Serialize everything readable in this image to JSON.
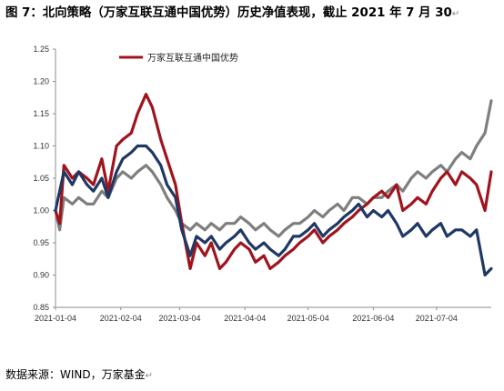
{
  "figure": {
    "title": "图 7：北向策略（万家互联互通中国优势）历史净值表现，截止 2021 年 7 月 30",
    "source": "数据来源：WIND，万家基金"
  },
  "chart_data": {
    "type": "line",
    "ylim": [
      0.85,
      1.25
    ],
    "yticks": [
      "1.25",
      "1.20",
      "1.15",
      "1.10",
      "1.05",
      "1.00",
      "0.95",
      "0.90",
      "0.85"
    ],
    "xticks": [
      "2021-01-04",
      "2021-02-04",
      "2021-03-04",
      "2021-04-04",
      "2021-05-04",
      "2021-06-04",
      "2021-07-04"
    ],
    "x_range": [
      "2021-01-04",
      "2021-07-30"
    ],
    "legend_position": "top-left",
    "grid": false,
    "series": [
      {
        "name": "",
        "color": "#7f7f7f",
        "points": [
          [
            "2021-01-04",
            1.0
          ],
          [
            "2021-01-06",
            0.97
          ],
          [
            "2021-01-08",
            1.02
          ],
          [
            "2021-01-12",
            1.01
          ],
          [
            "2021-01-15",
            1.02
          ],
          [
            "2021-01-19",
            1.01
          ],
          [
            "2021-01-22",
            1.01
          ],
          [
            "2021-01-26",
            1.03
          ],
          [
            "2021-01-29",
            1.02
          ],
          [
            "2021-02-02",
            1.05
          ],
          [
            "2021-02-05",
            1.06
          ],
          [
            "2021-02-09",
            1.05
          ],
          [
            "2021-02-12",
            1.06
          ],
          [
            "2021-02-16",
            1.07
          ],
          [
            "2021-02-19",
            1.06
          ],
          [
            "2021-02-23",
            1.04
          ],
          [
            "2021-02-26",
            1.02
          ],
          [
            "2021-03-02",
            1.0
          ],
          [
            "2021-03-05",
            0.98
          ],
          [
            "2021-03-09",
            0.97
          ],
          [
            "2021-03-12",
            0.98
          ],
          [
            "2021-03-16",
            0.97
          ],
          [
            "2021-03-19",
            0.98
          ],
          [
            "2021-03-23",
            0.97
          ],
          [
            "2021-03-26",
            0.98
          ],
          [
            "2021-03-30",
            0.98
          ],
          [
            "2021-04-02",
            0.99
          ],
          [
            "2021-04-06",
            0.98
          ],
          [
            "2021-04-09",
            0.97
          ],
          [
            "2021-04-13",
            0.98
          ],
          [
            "2021-04-16",
            0.97
          ],
          [
            "2021-04-20",
            0.96
          ],
          [
            "2021-04-23",
            0.97
          ],
          [
            "2021-04-27",
            0.98
          ],
          [
            "2021-04-30",
            0.98
          ],
          [
            "2021-05-04",
            0.99
          ],
          [
            "2021-05-07",
            1.0
          ],
          [
            "2021-05-11",
            0.99
          ],
          [
            "2021-05-14",
            1.0
          ],
          [
            "2021-05-18",
            1.01
          ],
          [
            "2021-05-21",
            1.0
          ],
          [
            "2021-05-25",
            1.02
          ],
          [
            "2021-05-28",
            1.02
          ],
          [
            "2021-06-01",
            1.01
          ],
          [
            "2021-06-04",
            1.02
          ],
          [
            "2021-06-08",
            1.02
          ],
          [
            "2021-06-11",
            1.03
          ],
          [
            "2021-06-15",
            1.04
          ],
          [
            "2021-06-18",
            1.03
          ],
          [
            "2021-06-22",
            1.05
          ],
          [
            "2021-06-25",
            1.06
          ],
          [
            "2021-06-29",
            1.05
          ],
          [
            "2021-07-02",
            1.06
          ],
          [
            "2021-07-06",
            1.07
          ],
          [
            "2021-07-09",
            1.06
          ],
          [
            "2021-07-13",
            1.08
          ],
          [
            "2021-07-16",
            1.09
          ],
          [
            "2021-07-20",
            1.08
          ],
          [
            "2021-07-23",
            1.1
          ],
          [
            "2021-07-27",
            1.12
          ],
          [
            "2021-07-30",
            1.17
          ]
        ]
      },
      {
        "name": "万家互联互通中国优势",
        "color": "#a0141e",
        "points": [
          [
            "2021-01-04",
            1.0
          ],
          [
            "2021-01-06",
            0.98
          ],
          [
            "2021-01-08",
            1.07
          ],
          [
            "2021-01-12",
            1.05
          ],
          [
            "2021-01-15",
            1.06
          ],
          [
            "2021-01-19",
            1.05
          ],
          [
            "2021-01-22",
            1.04
          ],
          [
            "2021-01-26",
            1.08
          ],
          [
            "2021-01-29",
            1.03
          ],
          [
            "2021-02-02",
            1.1
          ],
          [
            "2021-02-05",
            1.11
          ],
          [
            "2021-02-09",
            1.12
          ],
          [
            "2021-02-12",
            1.15
          ],
          [
            "2021-02-16",
            1.18
          ],
          [
            "2021-02-19",
            1.16
          ],
          [
            "2021-02-23",
            1.11
          ],
          [
            "2021-02-26",
            1.08
          ],
          [
            "2021-03-02",
            1.04
          ],
          [
            "2021-03-05",
            0.98
          ],
          [
            "2021-03-09",
            0.91
          ],
          [
            "2021-03-12",
            0.95
          ],
          [
            "2021-03-16",
            0.93
          ],
          [
            "2021-03-19",
            0.95
          ],
          [
            "2021-03-23",
            0.91
          ],
          [
            "2021-03-26",
            0.92
          ],
          [
            "2021-03-30",
            0.94
          ],
          [
            "2021-04-02",
            0.95
          ],
          [
            "2021-04-06",
            0.94
          ],
          [
            "2021-04-09",
            0.92
          ],
          [
            "2021-04-13",
            0.93
          ],
          [
            "2021-04-16",
            0.91
          ],
          [
            "2021-04-20",
            0.92
          ],
          [
            "2021-04-23",
            0.93
          ],
          [
            "2021-04-27",
            0.94
          ],
          [
            "2021-04-30",
            0.95
          ],
          [
            "2021-05-04",
            0.96
          ],
          [
            "2021-05-07",
            0.97
          ],
          [
            "2021-05-11",
            0.95
          ],
          [
            "2021-05-14",
            0.96
          ],
          [
            "2021-05-18",
            0.97
          ],
          [
            "2021-05-21",
            0.98
          ],
          [
            "2021-05-25",
            0.99
          ],
          [
            "2021-05-28",
            1.0
          ],
          [
            "2021-06-01",
            1.01
          ],
          [
            "2021-06-04",
            1.02
          ],
          [
            "2021-06-08",
            1.03
          ],
          [
            "2021-06-11",
            1.02
          ],
          [
            "2021-06-15",
            1.04
          ],
          [
            "2021-06-18",
            1.0
          ],
          [
            "2021-06-22",
            1.01
          ],
          [
            "2021-06-25",
            1.02
          ],
          [
            "2021-06-29",
            1.01
          ],
          [
            "2021-07-02",
            1.03
          ],
          [
            "2021-07-06",
            1.05
          ],
          [
            "2021-07-09",
            1.06
          ],
          [
            "2021-07-13",
            1.04
          ],
          [
            "2021-07-16",
            1.06
          ],
          [
            "2021-07-20",
            1.05
          ],
          [
            "2021-07-23",
            1.04
          ],
          [
            "2021-07-27",
            1.0
          ],
          [
            "2021-07-30",
            1.06
          ]
        ]
      },
      {
        "name": "",
        "color": "#1f3864",
        "points": [
          [
            "2021-01-04",
            1.0
          ],
          [
            "2021-01-06",
            1.03
          ],
          [
            "2021-01-08",
            1.06
          ],
          [
            "2021-01-12",
            1.04
          ],
          [
            "2021-01-15",
            1.06
          ],
          [
            "2021-01-19",
            1.04
          ],
          [
            "2021-01-22",
            1.03
          ],
          [
            "2021-01-26",
            1.05
          ],
          [
            "2021-01-29",
            1.02
          ],
          [
            "2021-02-02",
            1.06
          ],
          [
            "2021-02-05",
            1.08
          ],
          [
            "2021-02-09",
            1.09
          ],
          [
            "2021-02-12",
            1.1
          ],
          [
            "2021-02-16",
            1.1
          ],
          [
            "2021-02-19",
            1.09
          ],
          [
            "2021-02-23",
            1.07
          ],
          [
            "2021-02-26",
            1.04
          ],
          [
            "2021-03-02",
            1.02
          ],
          [
            "2021-03-05",
            0.97
          ],
          [
            "2021-03-09",
            0.93
          ],
          [
            "2021-03-12",
            0.96
          ],
          [
            "2021-03-16",
            0.95
          ],
          [
            "2021-03-19",
            0.96
          ],
          [
            "2021-03-23",
            0.94
          ],
          [
            "2021-03-26",
            0.95
          ],
          [
            "2021-03-30",
            0.96
          ],
          [
            "2021-04-02",
            0.97
          ],
          [
            "2021-04-06",
            0.95
          ],
          [
            "2021-04-09",
            0.94
          ],
          [
            "2021-04-13",
            0.95
          ],
          [
            "2021-04-16",
            0.94
          ],
          [
            "2021-04-20",
            0.93
          ],
          [
            "2021-04-23",
            0.94
          ],
          [
            "2021-04-27",
            0.96
          ],
          [
            "2021-04-30",
            0.96
          ],
          [
            "2021-05-04",
            0.97
          ],
          [
            "2021-05-07",
            0.98
          ],
          [
            "2021-05-11",
            0.96
          ],
          [
            "2021-05-14",
            0.97
          ],
          [
            "2021-05-18",
            0.98
          ],
          [
            "2021-05-21",
            0.99
          ],
          [
            "2021-05-25",
            1.0
          ],
          [
            "2021-05-28",
            1.01
          ],
          [
            "2021-06-01",
            0.99
          ],
          [
            "2021-06-04",
            1.0
          ],
          [
            "2021-06-08",
            0.99
          ],
          [
            "2021-06-11",
            1.0
          ],
          [
            "2021-06-15",
            0.98
          ],
          [
            "2021-06-18",
            0.96
          ],
          [
            "2021-06-22",
            0.97
          ],
          [
            "2021-06-25",
            0.98
          ],
          [
            "2021-06-29",
            0.96
          ],
          [
            "2021-07-02",
            0.97
          ],
          [
            "2021-07-06",
            0.98
          ],
          [
            "2021-07-09",
            0.96
          ],
          [
            "2021-07-13",
            0.97
          ],
          [
            "2021-07-16",
            0.97
          ],
          [
            "2021-07-20",
            0.96
          ],
          [
            "2021-07-23",
            0.97
          ],
          [
            "2021-07-27",
            0.9
          ],
          [
            "2021-07-30",
            0.91
          ]
        ]
      }
    ]
  }
}
